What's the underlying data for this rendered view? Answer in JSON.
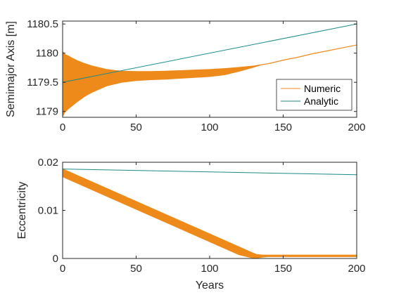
{
  "colors": {
    "numeric": "#ed8a1a",
    "analytic": "#1c8a8a",
    "axis": "#262626",
    "background": "#ffffff"
  },
  "chart_data": [
    {
      "type": "line",
      "xlabel": "",
      "ylabel": "Semimajor Axis [m]",
      "xlim": [
        0,
        200
      ],
      "ylim": [
        1178.9,
        1180.55
      ],
      "xticks": [
        0,
        50,
        100,
        150,
        200
      ],
      "xtick_labels": [
        "0",
        "50",
        "100",
        "150",
        "200"
      ],
      "yticks": [
        1179,
        1179.5,
        1180,
        1180.5
      ],
      "ytick_labels": [
        "1179",
        "1179.5",
        "1180",
        "1180.5"
      ],
      "grid": false,
      "legend": "inside-lower-right",
      "series": [
        {
          "name": "Numeric",
          "style": "oscillation-band",
          "x": [
            0,
            0.5,
            1,
            2,
            4,
            6,
            10,
            15,
            20,
            30,
            40,
            50,
            60,
            70,
            80,
            90,
            100,
            110,
            120,
            130,
            135,
            140,
            150,
            160,
            170,
            180,
            190,
            200
          ],
          "upper": [
            1180.03,
            1180.01,
            1179.99,
            1179.97,
            1179.95,
            1179.92,
            1179.87,
            1179.82,
            1179.78,
            1179.72,
            1179.69,
            1179.685,
            1179.685,
            1179.69,
            1179.7,
            1179.71,
            1179.72,
            1179.735,
            1179.755,
            1179.78,
            1179.8,
            1179.82,
            1179.88,
            1179.93,
            1179.99,
            1180.04,
            1180.09,
            1180.14
          ],
          "lower": [
            1178.92,
            1178.94,
            1178.97,
            1179.0,
            1179.05,
            1179.09,
            1179.17,
            1179.26,
            1179.33,
            1179.44,
            1179.5,
            1179.53,
            1179.545,
            1179.555,
            1179.57,
            1179.585,
            1179.6,
            1179.63,
            1179.69,
            1179.76,
            1179.8,
            1179.82,
            1179.88,
            1179.93,
            1179.99,
            1180.04,
            1180.09,
            1180.14
          ]
        },
        {
          "name": "Analytic",
          "style": "line",
          "x": [
            0,
            200
          ],
          "y": [
            1179.5,
            1180.5
          ]
        }
      ]
    },
    {
      "type": "line",
      "xlabel": "Years",
      "ylabel": "Eccentricity",
      "xlim": [
        0,
        200
      ],
      "ylim": [
        0,
        0.02
      ],
      "xticks": [
        0,
        50,
        100,
        150,
        200
      ],
      "xtick_labels": [
        "0",
        "50",
        "100",
        "150",
        "200"
      ],
      "yticks": [
        0,
        0.01,
        0.02
      ],
      "ytick_labels": [
        "0",
        "0.01",
        "0.02"
      ],
      "grid": false,
      "series": [
        {
          "name": "Numeric",
          "style": "oscillation-band",
          "x": [
            0,
            20,
            40,
            60,
            80,
            100,
            120,
            128,
            132,
            136,
            140,
            150,
            200
          ],
          "upper": [
            0.0186,
            0.0159,
            0.0132,
            0.0105,
            0.0078,
            0.0051,
            0.0024,
            0.0013,
            0.0008,
            0.0007,
            0.0007,
            0.0007,
            0.0007
          ],
          "lower": [
            0.017,
            0.0143,
            0.0116,
            0.0089,
            0.0062,
            0.0035,
            0.0008,
            0.0002,
            0.0001,
            0.0003,
            0.0004,
            0.0004,
            0.0004
          ]
        },
        {
          "name": "Analytic",
          "style": "line",
          "x": [
            0,
            200
          ],
          "y": [
            0.0186,
            0.0174
          ]
        }
      ]
    }
  ]
}
